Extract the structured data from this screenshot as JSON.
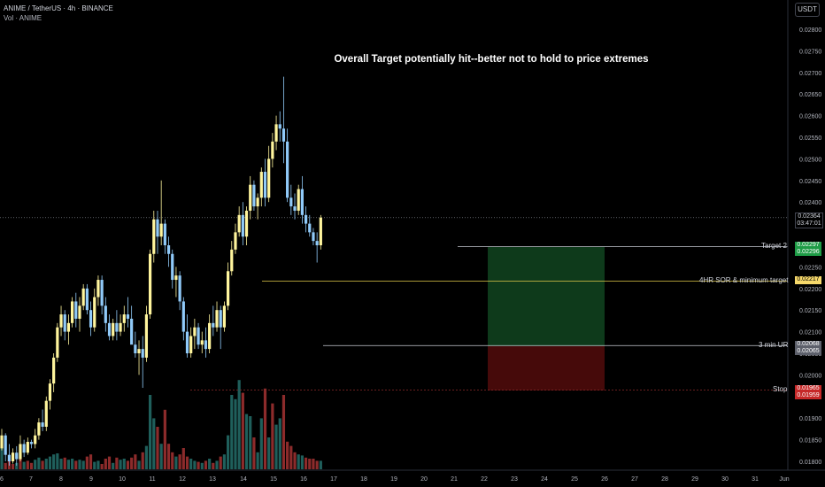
{
  "header": {
    "symbol_line": "ANIME / TetherUS · 4h · BINANCE",
    "vol_line": "Vol · ANIME",
    "currency_badge": "USDT"
  },
  "annotation": "Overall Target potentially hit--better not to hold to price extremes",
  "colors": {
    "up": "#fff59d",
    "down": "#90caf9",
    "vol_up": "#1f5f5b",
    "vol_down": "#8c2b2b",
    "target_zone": "#0f3d1c",
    "stop_zone": "#4a0b0b",
    "level_line": "#e0c84a"
  },
  "levels": [
    {
      "name": "Target 2",
      "price_top": "0.02297",
      "price_bottom": "0.02296",
      "box_color": "#1e9c46"
    },
    {
      "name": "4HR SOR & minimum target",
      "price_top": "0.02217",
      "price_bottom": "",
      "box_color": "#f7d96b"
    },
    {
      "name": "3 min UR",
      "price_top": "0.02068",
      "price_bottom": "0.02065",
      "box_color": "#5d606b"
    },
    {
      "name": "Stop",
      "price_top": "0.01965",
      "price_bottom": "0.01959",
      "box_color": "#c62828"
    }
  ],
  "current_price": {
    "price": "0.02364",
    "countdown": "03:47:01"
  },
  "chart_data": {
    "type": "candlestick",
    "title": "ANIME / TetherUS · 4h · BINANCE",
    "y_ticks": [
      "0.02800",
      "0.02750",
      "0.02700",
      "0.02650",
      "0.02600",
      "0.02550",
      "0.02500",
      "0.02450",
      "0.02400",
      "0.02350",
      "0.02300",
      "0.02250",
      "0.02200",
      "0.02150",
      "0.02100",
      "0.02050",
      "0.02000",
      "0.01950",
      "0.01900",
      "0.01850",
      "0.01800"
    ],
    "ylim": [
      0.0178,
      0.0283
    ],
    "x_ticks": [
      "6",
      "7",
      "8",
      "9",
      "10",
      "11",
      "12",
      "13",
      "14",
      "15",
      "16",
      "17",
      "18",
      "19",
      "20",
      "21",
      "22",
      "23",
      "24",
      "25",
      "26",
      "27",
      "28",
      "29",
      "30",
      "31",
      "Jun"
    ],
    "candles": [
      [
        0.0183,
        0.01875,
        0.01825,
        0.0186
      ],
      [
        0.0186,
        0.01865,
        0.018,
        0.01815
      ],
      [
        0.01815,
        0.0184,
        0.0179,
        0.018
      ],
      [
        0.018,
        0.0183,
        0.01795,
        0.0182
      ],
      [
        0.0182,
        0.01835,
        0.0179,
        0.01805
      ],
      [
        0.01805,
        0.0186,
        0.018,
        0.0184
      ],
      [
        0.0184,
        0.0185,
        0.0181,
        0.0182
      ],
      [
        0.0182,
        0.01855,
        0.01815,
        0.01845
      ],
      [
        0.01845,
        0.0185,
        0.0183,
        0.0184
      ],
      [
        0.0184,
        0.01875,
        0.0183,
        0.0186
      ],
      [
        0.0186,
        0.019,
        0.0185,
        0.0189
      ],
      [
        0.0189,
        0.0192,
        0.0187,
        0.0188
      ],
      [
        0.0188,
        0.0195,
        0.0187,
        0.0194
      ],
      [
        0.0194,
        0.0199,
        0.0192,
        0.0198
      ],
      [
        0.0198,
        0.0205,
        0.0196,
        0.0204
      ],
      [
        0.0204,
        0.0212,
        0.0203,
        0.0211
      ],
      [
        0.0211,
        0.0216,
        0.0209,
        0.0214
      ],
      [
        0.0214,
        0.0215,
        0.0208,
        0.021
      ],
      [
        0.021,
        0.0214,
        0.0207,
        0.0212
      ],
      [
        0.0212,
        0.0218,
        0.0211,
        0.0217
      ],
      [
        0.0217,
        0.0219,
        0.0211,
        0.0213
      ],
      [
        0.0213,
        0.0218,
        0.021,
        0.0216
      ],
      [
        0.0216,
        0.0221,
        0.0215,
        0.022
      ],
      [
        0.022,
        0.0221,
        0.0214,
        0.0215
      ],
      [
        0.0215,
        0.0217,
        0.0209,
        0.0211
      ],
      [
        0.0211,
        0.022,
        0.021,
        0.0218
      ],
      [
        0.0218,
        0.0223,
        0.0216,
        0.0222
      ],
      [
        0.0222,
        0.0223,
        0.0214,
        0.0216
      ],
      [
        0.0216,
        0.0218,
        0.021,
        0.0212
      ],
      [
        0.0212,
        0.0214,
        0.0208,
        0.0209
      ],
      [
        0.0209,
        0.0213,
        0.0208,
        0.0212
      ],
      [
        0.0212,
        0.0215,
        0.0208,
        0.021
      ],
      [
        0.021,
        0.0214,
        0.0209,
        0.0212
      ],
      [
        0.0212,
        0.0216,
        0.021,
        0.0214
      ],
      [
        0.0214,
        0.0218,
        0.0211,
        0.0213
      ],
      [
        0.0213,
        0.0216,
        0.0208,
        0.0207
      ],
      [
        0.0207,
        0.021,
        0.0204,
        0.0205
      ],
      [
        0.0205,
        0.0208,
        0.02,
        0.0206
      ],
      [
        0.0206,
        0.0209,
        0.0197,
        0.0204
      ],
      [
        0.0204,
        0.0216,
        0.0203,
        0.0214
      ],
      [
        0.0214,
        0.0229,
        0.0213,
        0.0228
      ],
      [
        0.0228,
        0.0238,
        0.0226,
        0.0236
      ],
      [
        0.0236,
        0.0238,
        0.0228,
        0.0232
      ],
      [
        0.0232,
        0.0245,
        0.023,
        0.0235
      ],
      [
        0.0235,
        0.0236,
        0.0228,
        0.023
      ],
      [
        0.023,
        0.0232,
        0.0225,
        0.0228
      ],
      [
        0.0228,
        0.0229,
        0.022,
        0.0222
      ],
      [
        0.0222,
        0.0225,
        0.0218,
        0.0223
      ],
      [
        0.0223,
        0.0224,
        0.0215,
        0.0217
      ],
      [
        0.0217,
        0.0218,
        0.0208,
        0.021
      ],
      [
        0.021,
        0.0214,
        0.0204,
        0.0205
      ],
      [
        0.0205,
        0.0211,
        0.0204,
        0.0209
      ],
      [
        0.0209,
        0.0213,
        0.0206,
        0.0211
      ],
      [
        0.0211,
        0.0212,
        0.0206,
        0.0207
      ],
      [
        0.0207,
        0.021,
        0.0205,
        0.0208
      ],
      [
        0.0208,
        0.0211,
        0.0204,
        0.0206
      ],
      [
        0.0206,
        0.0214,
        0.0205,
        0.0212
      ],
      [
        0.0212,
        0.0216,
        0.0209,
        0.0211
      ],
      [
        0.0211,
        0.0217,
        0.021,
        0.0215
      ],
      [
        0.0215,
        0.0216,
        0.0206,
        0.0211
      ],
      [
        0.0211,
        0.0217,
        0.021,
        0.0216
      ],
      [
        0.0216,
        0.0226,
        0.0215,
        0.0224
      ],
      [
        0.0224,
        0.0231,
        0.0223,
        0.0229
      ],
      [
        0.0229,
        0.0235,
        0.0228,
        0.0233
      ],
      [
        0.0233,
        0.0239,
        0.0232,
        0.0237
      ],
      [
        0.0237,
        0.024,
        0.023,
        0.0232
      ],
      [
        0.0232,
        0.0239,
        0.023,
        0.0238
      ],
      [
        0.0238,
        0.0246,
        0.0236,
        0.0244
      ],
      [
        0.0244,
        0.0245,
        0.0238,
        0.0239
      ],
      [
        0.0239,
        0.0242,
        0.0236,
        0.0241
      ],
      [
        0.0241,
        0.0248,
        0.0239,
        0.0247
      ],
      [
        0.0247,
        0.025,
        0.0239,
        0.0241
      ],
      [
        0.0241,
        0.0253,
        0.024,
        0.025
      ],
      [
        0.025,
        0.0256,
        0.0248,
        0.0254
      ],
      [
        0.0254,
        0.026,
        0.0252,
        0.0258
      ],
      [
        0.0258,
        0.0261,
        0.0254,
        0.0257
      ],
      [
        0.0257,
        0.0269,
        0.0249,
        0.0254
      ],
      [
        0.0254,
        0.0257,
        0.024,
        0.0241
      ],
      [
        0.0241,
        0.0244,
        0.0237,
        0.0239
      ],
      [
        0.0239,
        0.0242,
        0.0236,
        0.0238
      ],
      [
        0.0238,
        0.0244,
        0.0237,
        0.0243
      ],
      [
        0.0243,
        0.0246,
        0.0235,
        0.0237
      ],
      [
        0.0237,
        0.0239,
        0.0233,
        0.0235
      ],
      [
        0.0235,
        0.0237,
        0.0232,
        0.0233
      ],
      [
        0.0233,
        0.0234,
        0.023,
        0.0231
      ],
      [
        0.0231,
        0.0233,
        0.0226,
        0.023
      ],
      [
        0.023,
        0.0237,
        0.0229,
        0.02364
      ]
    ],
    "volume": [
      [
        1.0,
        1
      ],
      [
        0.3,
        0
      ],
      [
        0.45,
        0
      ],
      [
        0.25,
        0
      ],
      [
        0.3,
        1
      ],
      [
        0.5,
        0
      ],
      [
        0.35,
        1
      ],
      [
        0.4,
        0
      ],
      [
        0.3,
        0
      ],
      [
        0.45,
        1
      ],
      [
        0.55,
        1
      ],
      [
        0.4,
        0
      ],
      [
        0.5,
        1
      ],
      [
        0.6,
        1
      ],
      [
        0.7,
        1
      ],
      [
        0.75,
        1
      ],
      [
        0.5,
        1
      ],
      [
        0.55,
        0
      ],
      [
        0.45,
        1
      ],
      [
        0.5,
        1
      ],
      [
        0.4,
        0
      ],
      [
        0.45,
        1
      ],
      [
        0.4,
        1
      ],
      [
        0.6,
        0
      ],
      [
        0.7,
        0
      ],
      [
        0.35,
        1
      ],
      [
        0.4,
        1
      ],
      [
        0.25,
        0
      ],
      [
        0.5,
        0
      ],
      [
        0.6,
        0
      ],
      [
        0.3,
        1
      ],
      [
        0.55,
        0
      ],
      [
        0.45,
        1
      ],
      [
        0.5,
        1
      ],
      [
        0.4,
        0
      ],
      [
        0.55,
        0
      ],
      [
        0.7,
        0
      ],
      [
        0.4,
        1
      ],
      [
        0.8,
        0
      ],
      [
        1.1,
        1
      ],
      [
        3.5,
        1
      ],
      [
        2.4,
        1
      ],
      [
        2.0,
        0
      ],
      [
        1.2,
        1
      ],
      [
        2.8,
        0
      ],
      [
        1.2,
        0
      ],
      [
        0.8,
        0
      ],
      [
        0.6,
        1
      ],
      [
        0.7,
        0
      ],
      [
        1.0,
        0
      ],
      [
        0.6,
        0
      ],
      [
        0.5,
        1
      ],
      [
        0.4,
        1
      ],
      [
        0.35,
        0
      ],
      [
        0.3,
        1
      ],
      [
        0.4,
        0
      ],
      [
        0.5,
        1
      ],
      [
        0.3,
        0
      ],
      [
        0.4,
        1
      ],
      [
        0.6,
        0
      ],
      [
        0.7,
        1
      ],
      [
        1.6,
        1
      ],
      [
        3.5,
        1
      ],
      [
        3.3,
        1
      ],
      [
        4.2,
        1
      ],
      [
        3.6,
        0
      ],
      [
        2.6,
        1
      ],
      [
        2.5,
        1
      ],
      [
        1.5,
        0
      ],
      [
        0.8,
        1
      ],
      [
        2.4,
        1
      ],
      [
        3.8,
        0
      ],
      [
        1.5,
        1
      ],
      [
        3.1,
        0
      ],
      [
        2.1,
        1
      ],
      [
        2.4,
        1
      ],
      [
        3.5,
        0
      ],
      [
        1.3,
        0
      ],
      [
        1.1,
        0
      ],
      [
        0.8,
        0
      ],
      [
        0.7,
        1
      ],
      [
        0.65,
        1
      ],
      [
        0.55,
        0
      ],
      [
        0.5,
        0
      ],
      [
        0.5,
        0
      ],
      [
        0.4,
        0
      ],
      [
        0.4,
        1
      ]
    ]
  }
}
